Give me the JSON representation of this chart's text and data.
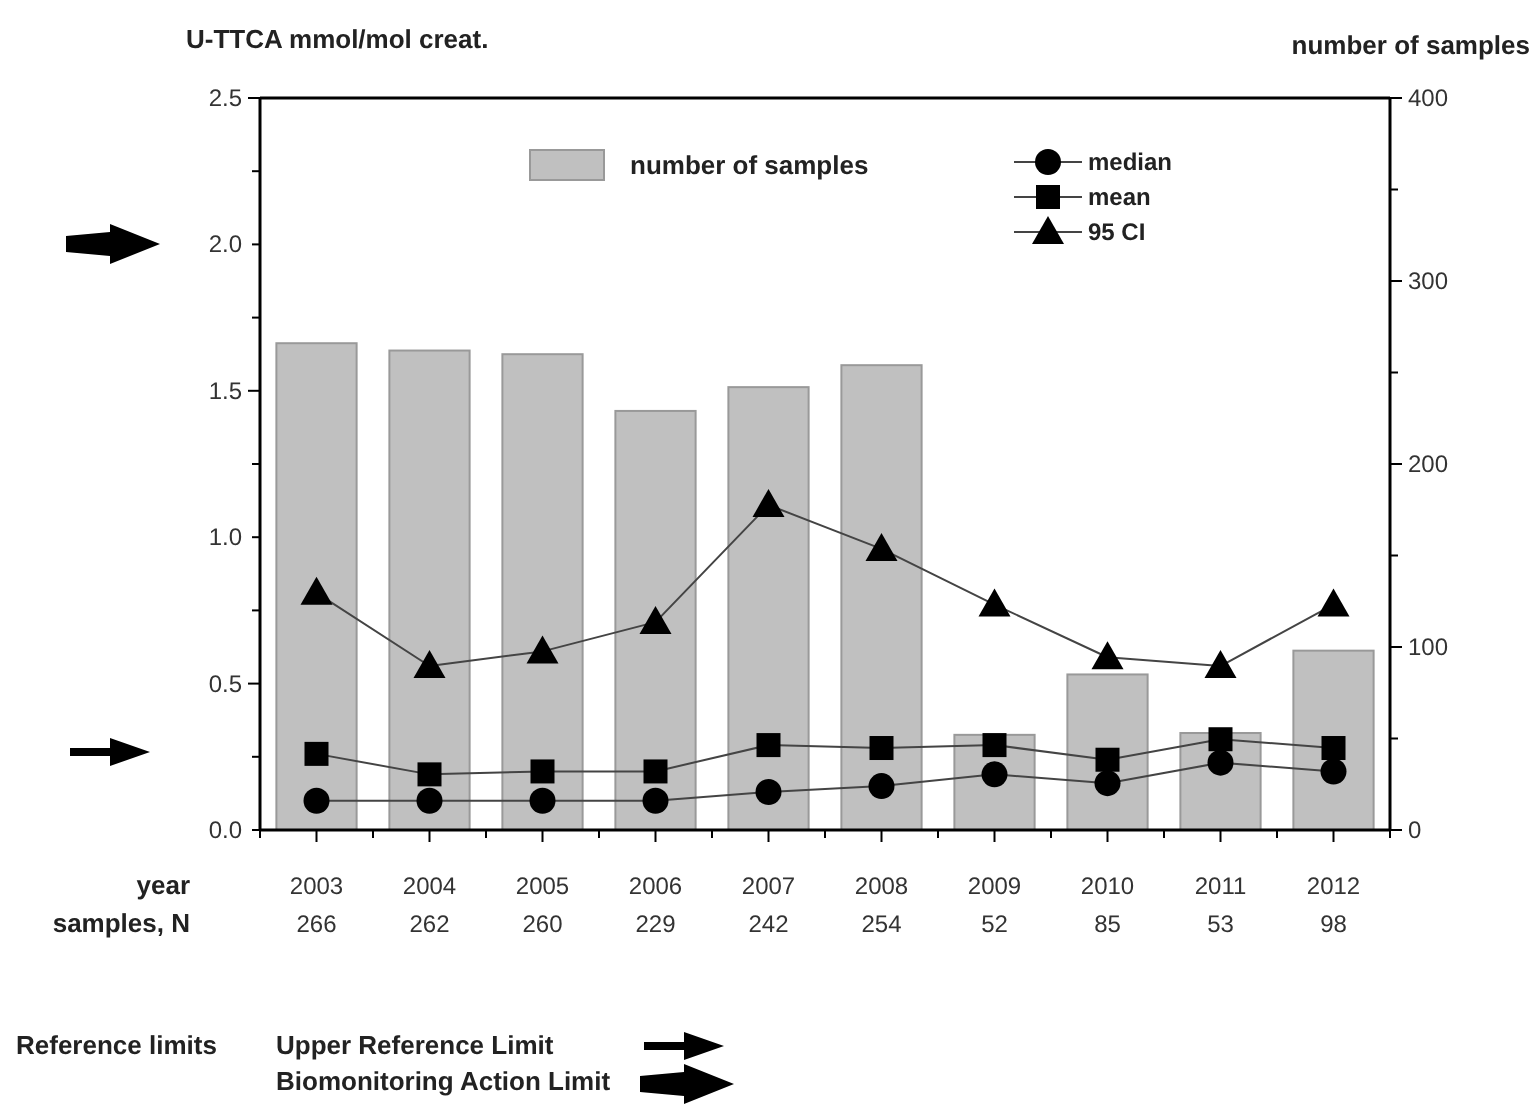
{
  "chart_data": {
    "type": "line",
    "ylabel": "U-TTCA mmol/mol creat.",
    "y2label": "number of samples",
    "xlabel": "year",
    "categories": [
      "2003",
      "2004",
      "2005",
      "2006",
      "2007",
      "2008",
      "2009",
      "2010",
      "2011",
      "2012"
    ],
    "ylim": [
      0,
      2.5
    ],
    "yticks": [
      {
        "value": 0,
        "label": "0.0"
      },
      {
        "value": 0.25,
        "label": null
      },
      0.5,
      {
        "value": 0.75,
        "label": null
      },
      {
        "value": 1,
        "label": "1.0"
      },
      {
        "value": 1.25,
        "label": null
      },
      1.5,
      {
        "value": 1.75,
        "label": null
      },
      {
        "value": 2,
        "label": "2.0"
      },
      {
        "value": 2.25,
        "label": null
      },
      2.5
    ],
    "y2lim": [
      0,
      400
    ],
    "y2ticks": [
      0,
      {
        "value": 50,
        "label": null
      },
      100,
      {
        "value": 150,
        "label": null
      },
      200,
      {
        "value": 250,
        "label": null
      },
      300,
      {
        "value": 350,
        "label": null
      },
      400
    ],
    "series": [
      {
        "name": "number of samples",
        "type": "bar",
        "axis": "y2",
        "color": "#c0c0c0",
        "values": [
          266,
          262,
          260,
          229,
          242,
          254,
          52,
          85,
          53,
          98
        ],
        "data_labels": true
      },
      {
        "name": "median",
        "marker": "circle",
        "color": "#000000",
        "values": [
          0.1,
          0.1,
          0.1,
          0.1,
          0.13,
          0.15,
          0.19,
          0.16,
          0.23,
          0.2
        ]
      },
      {
        "name": "mean",
        "marker": "square",
        "color": "#000000",
        "values": [
          0.26,
          0.19,
          0.2,
          0.2,
          0.29,
          0.28,
          0.29,
          0.24,
          0.31,
          0.28
        ]
      },
      {
        "name": "95 CI",
        "marker": "triangle",
        "color": "#000000",
        "values": [
          0.81,
          0.56,
          0.61,
          0.71,
          1.11,
          0.96,
          0.77,
          0.59,
          0.56,
          0.77
        ]
      }
    ],
    "annotations": [
      "samples, N",
      "Reference limits",
      "Upper Reference Limit",
      "Biomonitoring Action Limit"
    ],
    "legend": "top",
    "grid": false
  }
}
